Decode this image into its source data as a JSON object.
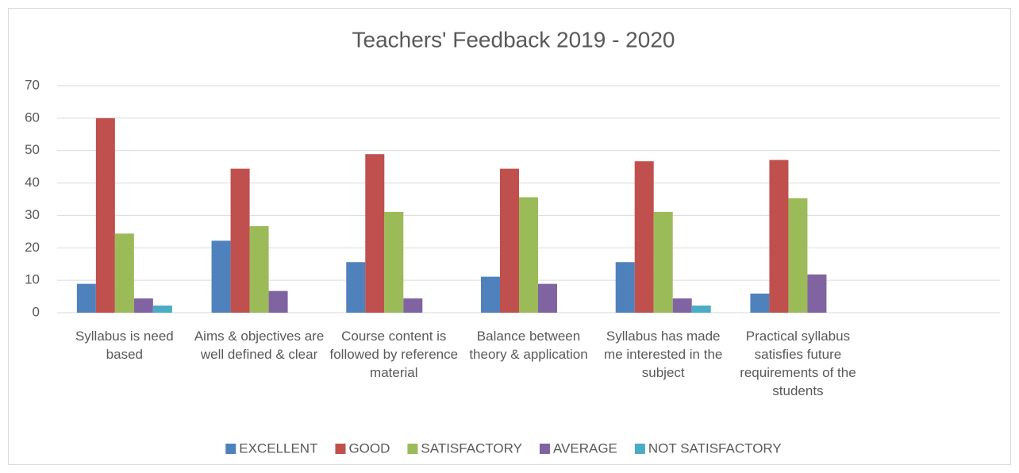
{
  "chart_data": {
    "type": "bar",
    "title": "Teachers' Feedback 2019 - 2020",
    "categories": [
      "Syllabus is need based",
      "Aims & objectives are well defined & clear",
      "Course content is followed by reference material",
      "Balance between theory & application",
      "Syllabus has made me interested in the subject",
      "Practical syllabus satisfies future requirements of the students",
      null
    ],
    "series": [
      {
        "name": "EXCELLENT",
        "color": "#4f81bd",
        "values": [
          8.9,
          22.2,
          15.6,
          11.1,
          15.6,
          5.9,
          null
        ]
      },
      {
        "name": "GOOD",
        "color": "#c0504d",
        "values": [
          60,
          44.4,
          48.9,
          44.4,
          46.7,
          47.1,
          null
        ]
      },
      {
        "name": "SATISFACTORY",
        "color": "#9bbb59",
        "values": [
          24.4,
          26.7,
          31.1,
          35.6,
          31.1,
          35.3,
          null
        ]
      },
      {
        "name": "AVERAGE",
        "color": "#8064a2",
        "values": [
          4.4,
          6.7,
          4.4,
          8.9,
          4.4,
          11.8,
          null
        ]
      },
      {
        "name": "NOT SATISFACTORY",
        "color": "#4bacc6",
        "values": [
          2.2,
          0,
          0,
          0,
          2.2,
          0,
          null
        ]
      }
    ],
    "ylim": [
      0,
      70
    ],
    "yticks": [
      0,
      10,
      20,
      30,
      40,
      50,
      60,
      70
    ],
    "grid": true,
    "legend": "bottom"
  }
}
